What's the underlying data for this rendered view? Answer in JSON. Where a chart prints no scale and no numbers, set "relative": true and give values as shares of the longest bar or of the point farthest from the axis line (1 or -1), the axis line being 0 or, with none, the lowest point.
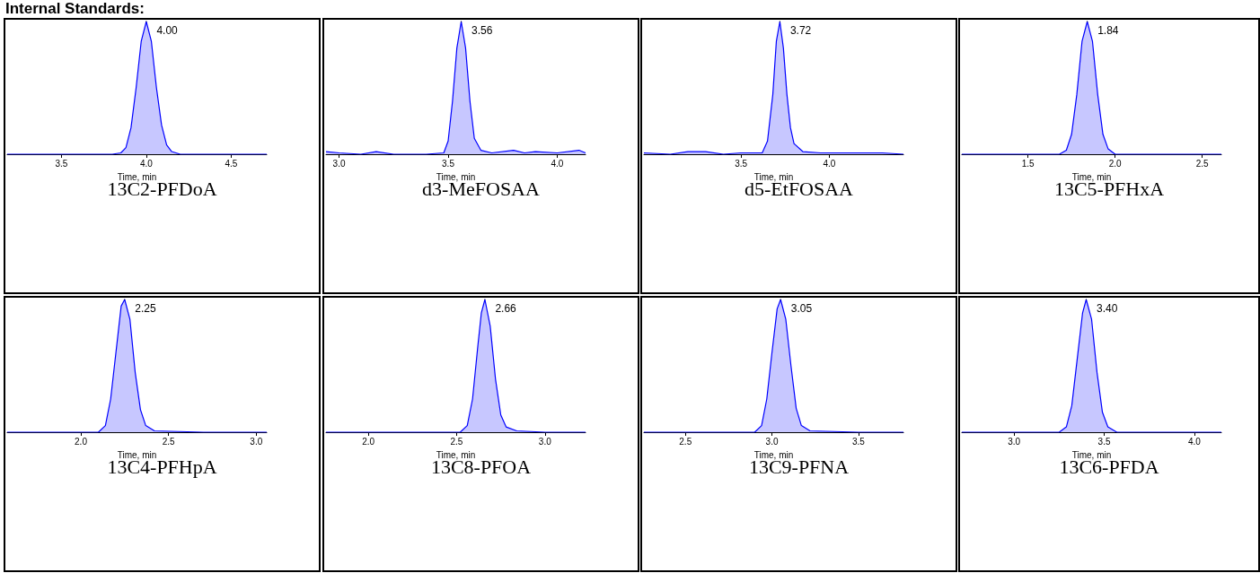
{
  "chart_data": [
    {
      "type": "area",
      "relative": true,
      "title": "13C2-PFDoA",
      "xlabel": "Time, min",
      "color": "#0000ff",
      "marker": "none",
      "xlim": [
        3.18,
        4.71
      ],
      "xticks": [
        {
          "value": 3.5,
          "label": "3.5"
        },
        {
          "value": 4,
          "label": "4.0"
        },
        {
          "value": 4.5,
          "label": "4.5"
        }
      ],
      "annotations": [
        "Internal Standards:",
        {
          "text": "4.00",
          "x": 4.0,
          "y": 1
        }
      ],
      "x": [
        3.18,
        3.5,
        3.8,
        3.85,
        3.88,
        3.91,
        3.94,
        3.97,
        4.0,
        4.03,
        4.06,
        4.09,
        4.12,
        4.15,
        4.2,
        4.5,
        4.71
      ],
      "values": [
        0,
        0,
        0,
        0.01,
        0.05,
        0.2,
        0.5,
        0.85,
        1,
        0.85,
        0.5,
        0.22,
        0.07,
        0.02,
        0,
        0,
        0
      ]
    },
    {
      "type": "area",
      "relative": true,
      "title": "d3-MeFOSAA",
      "xlabel": "Time, min",
      "color": "#0000ff",
      "marker": "none",
      "xlim": [
        2.94,
        4.13
      ],
      "xticks": [
        {
          "value": 3,
          "label": "3.0"
        },
        {
          "value": 3.5,
          "label": "3.5"
        },
        {
          "value": 4,
          "label": "4.0"
        }
      ],
      "annotations": [
        {
          "text": "3.56",
          "x": 3.56,
          "y": 1
        }
      ],
      "x": [
        2.94,
        3.0,
        3.1,
        3.17,
        3.25,
        3.4,
        3.48,
        3.5,
        3.52,
        3.54,
        3.56,
        3.58,
        3.6,
        3.62,
        3.65,
        3.7,
        3.8,
        3.85,
        3.9,
        4.0,
        4.1,
        4.13
      ],
      "values": [
        0.02,
        0.01,
        0,
        0.02,
        0,
        0,
        0.01,
        0.1,
        0.4,
        0.8,
        1,
        0.8,
        0.4,
        0.12,
        0.03,
        0.01,
        0.03,
        0.01,
        0.02,
        0.01,
        0.03,
        0.01
      ]
    },
    {
      "type": "area",
      "relative": true,
      "title": "d5-EtFOSAA",
      "xlabel": "Time, min",
      "color": "#0000ff",
      "marker": "none",
      "xlim": [
        2.95,
        4.42
      ],
      "xticks": [
        {
          "value": 3.5,
          "label": "3.5"
        },
        {
          "value": 4,
          "label": "4.0"
        }
      ],
      "annotations": [
        {
          "text": "3.72",
          "x": 3.72,
          "y": 1
        }
      ],
      "x": [
        2.95,
        3.1,
        3.2,
        3.3,
        3.4,
        3.5,
        3.62,
        3.65,
        3.68,
        3.7,
        3.72,
        3.74,
        3.76,
        3.78,
        3.8,
        3.85,
        3.95,
        4.1,
        4.3,
        4.42
      ],
      "values": [
        0.01,
        0,
        0.02,
        0.02,
        0,
        0.01,
        0.01,
        0.1,
        0.45,
        0.85,
        1,
        0.8,
        0.45,
        0.2,
        0.08,
        0.02,
        0.01,
        0.01,
        0.01,
        0
      ]
    },
    {
      "type": "area",
      "relative": true,
      "title": "13C5-PFHxA",
      "xlabel": "Time, min",
      "color": "#0000ff",
      "marker": "none",
      "xlim": [
        1.12,
        2.61
      ],
      "xticks": [
        {
          "value": 1.5,
          "label": "1.5"
        },
        {
          "value": 2,
          "label": "2.0"
        },
        {
          "value": 2.5,
          "label": "2.5"
        }
      ],
      "annotations": [
        {
          "text": "1.84",
          "x": 1.84,
          "y": 1
        }
      ],
      "x": [
        1.12,
        1.5,
        1.68,
        1.72,
        1.75,
        1.78,
        1.81,
        1.84,
        1.87,
        1.9,
        1.93,
        1.96,
        2.0,
        2.3,
        2.61
      ],
      "values": [
        0,
        0,
        0,
        0.03,
        0.15,
        0.45,
        0.85,
        1,
        0.85,
        0.45,
        0.15,
        0.04,
        0,
        0,
        0
      ]
    },
    {
      "type": "area",
      "relative": true,
      "title": "13C4-PFHpA",
      "xlabel": "Time, min",
      "color": "#0000ff",
      "marker": "none",
      "xlim": [
        1.58,
        3.06
      ],
      "xticks": [
        {
          "value": 2,
          "label": "2.0"
        },
        {
          "value": 2.5,
          "label": "2.5"
        },
        {
          "value": 3,
          "label": "3.0"
        }
      ],
      "annotations": [
        {
          "text": "2.25",
          "x": 2.25,
          "y": 1
        }
      ],
      "x": [
        1.58,
        2.0,
        2.1,
        2.14,
        2.17,
        2.2,
        2.23,
        2.25,
        2.28,
        2.31,
        2.34,
        2.37,
        2.42,
        2.7,
        3.06
      ],
      "values": [
        0,
        0,
        0,
        0.05,
        0.25,
        0.6,
        0.95,
        1,
        0.85,
        0.45,
        0.17,
        0.05,
        0.01,
        0,
        0
      ]
    },
    {
      "type": "area",
      "relative": true,
      "title": "13C8-PFOA",
      "xlabel": "Time, min",
      "color": "#0000ff",
      "marker": "none",
      "xlim": [
        1.76,
        3.23
      ],
      "xticks": [
        {
          "value": 2,
          "label": "2.0"
        },
        {
          "value": 2.5,
          "label": "2.5"
        },
        {
          "value": 3,
          "label": "3.0"
        }
      ],
      "annotations": [
        {
          "text": "2.66",
          "x": 2.66,
          "y": 1
        }
      ],
      "x": [
        1.76,
        2.2,
        2.52,
        2.56,
        2.59,
        2.62,
        2.64,
        2.66,
        2.69,
        2.72,
        2.75,
        2.78,
        2.84,
        3.0,
        3.23
      ],
      "values": [
        0,
        0,
        0,
        0.05,
        0.25,
        0.65,
        0.9,
        1,
        0.8,
        0.4,
        0.13,
        0.04,
        0.01,
        0,
        0
      ]
    },
    {
      "type": "area",
      "relative": true,
      "title": "13C9-PFNA",
      "xlabel": "Time, min",
      "color": "#0000ff",
      "marker": "none",
      "xlim": [
        2.26,
        3.76
      ],
      "xticks": [
        {
          "value": 2.5,
          "label": "2.5"
        },
        {
          "value": 3,
          "label": "3.0"
        },
        {
          "value": 3.5,
          "label": "3.5"
        }
      ],
      "annotations": [
        {
          "text": "3.05",
          "x": 3.05,
          "y": 1
        }
      ],
      "x": [
        2.26,
        2.7,
        2.9,
        2.94,
        2.97,
        3.0,
        3.03,
        3.05,
        3.08,
        3.11,
        3.14,
        3.17,
        3.22,
        3.5,
        3.76
      ],
      "values": [
        0,
        0,
        0,
        0.05,
        0.25,
        0.6,
        0.93,
        1,
        0.85,
        0.5,
        0.18,
        0.05,
        0.01,
        0,
        0
      ]
    },
    {
      "type": "area",
      "relative": true,
      "title": "13C6-PFDA",
      "xlabel": "Time, min",
      "color": "#0000ff",
      "marker": "none",
      "xlim": [
        2.71,
        4.15
      ],
      "xticks": [
        {
          "value": 3,
          "label": "3.0"
        },
        {
          "value": 3.5,
          "label": "3.5"
        },
        {
          "value": 4,
          "label": "4.0"
        }
      ],
      "annotations": [
        {
          "text": "3.40",
          "x": 3.4,
          "y": 1
        }
      ],
      "x": [
        2.71,
        3.1,
        3.25,
        3.29,
        3.32,
        3.35,
        3.38,
        3.4,
        3.43,
        3.46,
        3.49,
        3.52,
        3.57,
        3.8,
        4.15
      ],
      "values": [
        0,
        0,
        0,
        0.04,
        0.2,
        0.55,
        0.9,
        1,
        0.85,
        0.45,
        0.15,
        0.04,
        0,
        0,
        0
      ]
    }
  ]
}
